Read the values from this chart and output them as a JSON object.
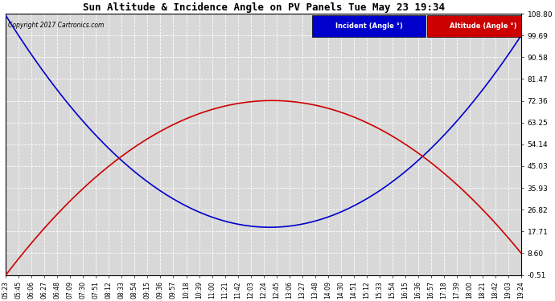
{
  "title": "Sun Altitude & Incidence Angle on PV Panels Tue May 23 19:34",
  "copyright": "Copyright 2017 Cartronics.com",
  "ylim": [
    -0.51,
    108.8
  ],
  "yticks": [
    -0.51,
    8.6,
    17.71,
    26.82,
    35.93,
    45.03,
    54.14,
    63.25,
    72.36,
    81.47,
    90.58,
    99.69,
    108.8
  ],
  "incident_color": "#0000cc",
  "altitude_color": "#cc0000",
  "legend_incident_label": "Incident (Angle °)",
  "legend_altitude_label": "Altitude (Angle °)",
  "plot_bg_color": "#d8d8d8",
  "fig_bg_color": "#ffffff",
  "grid_color": "#ffffff",
  "time_labels": [
    "05:23",
    "05:45",
    "06:06",
    "06:27",
    "06:48",
    "07:09",
    "07:30",
    "07:51",
    "08:12",
    "08:33",
    "08:54",
    "09:15",
    "09:36",
    "09:57",
    "10:18",
    "10:39",
    "11:00",
    "11:21",
    "11:42",
    "12:03",
    "12:24",
    "12:45",
    "13:06",
    "13:27",
    "13:48",
    "14:09",
    "14:30",
    "14:51",
    "15:12",
    "15:33",
    "15:54",
    "16:15",
    "16:36",
    "16:57",
    "17:18",
    "17:39",
    "18:00",
    "18:21",
    "18:42",
    "19:03",
    "19:24"
  ],
  "n_points": 500,
  "incident_p0": 108.0,
  "incident_p_half": 19.5,
  "incident_p1": 99.69,
  "altitude_p0": -0.51,
  "altitude_p_half": 72.36,
  "altitude_p1": 8.6
}
